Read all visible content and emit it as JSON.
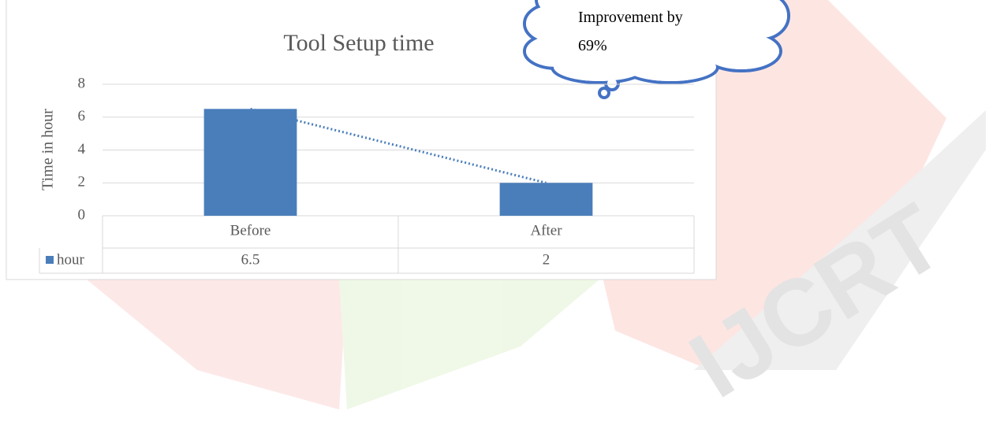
{
  "chart_data": {
    "type": "bar",
    "title": "Tool Setup time",
    "y_label": "Time in hour",
    "categories": [
      "Before",
      "After"
    ],
    "series": [
      {
        "name": "hour",
        "color": "#4a7ebb",
        "values": [
          6.5,
          2
        ]
      }
    ],
    "ylim": [
      0,
      8
    ],
    "yticks": [
      0,
      2,
      4,
      6,
      8
    ],
    "grid": true,
    "trendline": true,
    "data_table": true,
    "annotation": "Improvement by 69%",
    "watermark": "IJCRT"
  }
}
